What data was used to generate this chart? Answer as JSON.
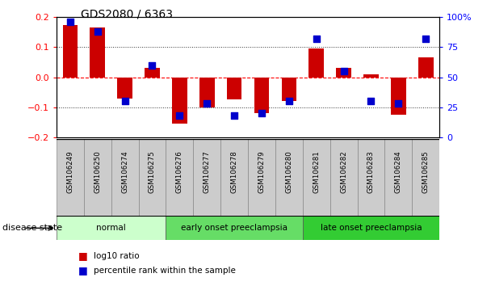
{
  "title": "GDS2080 / 6363",
  "samples": [
    "GSM106249",
    "GSM106250",
    "GSM106274",
    "GSM106275",
    "GSM106276",
    "GSM106277",
    "GSM106278",
    "GSM106279",
    "GSM106280",
    "GSM106281",
    "GSM106282",
    "GSM106283",
    "GSM106284",
    "GSM106285"
  ],
  "log10_ratio": [
    0.175,
    0.165,
    -0.07,
    0.03,
    -0.155,
    -0.1,
    -0.075,
    -0.12,
    -0.08,
    0.095,
    0.03,
    0.01,
    -0.125,
    0.065
  ],
  "percentile_rank": [
    96,
    88,
    30,
    60,
    18,
    28,
    18,
    20,
    30,
    82,
    55,
    30,
    28,
    82
  ],
  "bar_color": "#cc0000",
  "dot_color": "#0000cc",
  "groups": [
    {
      "label": "normal",
      "start": 0,
      "end": 4,
      "color": "#ccffcc"
    },
    {
      "label": "early onset preeclampsia",
      "start": 4,
      "end": 9,
      "color": "#66dd66"
    },
    {
      "label": "late onset preeclampsia",
      "start": 9,
      "end": 14,
      "color": "#33cc33"
    }
  ],
  "ylim_left": [
    -0.2,
    0.2
  ],
  "ylim_right": [
    0,
    100
  ],
  "yticks_left": [
    -0.2,
    -0.1,
    0,
    0.1,
    0.2
  ],
  "yticks_right": [
    0,
    25,
    50,
    75,
    100
  ],
  "ytick_labels_right": [
    "0",
    "25",
    "50",
    "75",
    "100%"
  ],
  "hline_color": "#ff0000",
  "dotted_color": "#333333",
  "background_color": "#ffffff",
  "legend_log10_label": "log10 ratio",
  "legend_pct_label": "percentile rank within the sample",
  "disease_state_label": "disease state",
  "tick_box_color": "#cccccc",
  "tick_box_edge": "#888888"
}
